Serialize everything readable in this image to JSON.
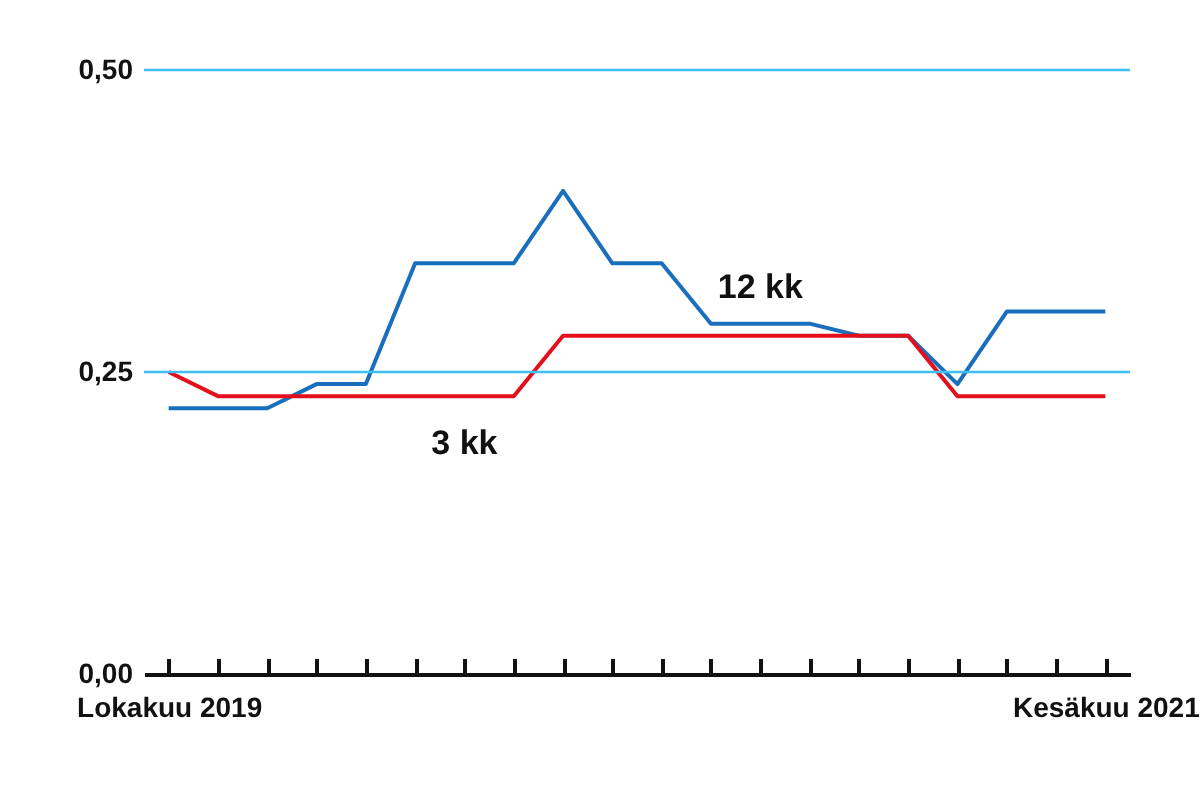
{
  "chart_data": {
    "type": "line",
    "categories": [
      "Lokakuu 2019",
      null,
      null,
      null,
      null,
      null,
      null,
      null,
      null,
      null,
      null,
      null,
      null,
      null,
      null,
      null,
      null,
      null,
      null,
      "Kesäkuu 2021"
    ],
    "series": [
      {
        "name": "12 kk",
        "color": "#1a6fbd",
        "values": [
          0.22,
          0.22,
          0.22,
          0.24,
          0.24,
          0.34,
          0.34,
          0.34,
          0.4,
          0.34,
          0.34,
          0.29,
          0.29,
          0.29,
          0.28,
          0.28,
          0.24,
          0.3,
          0.3,
          0.3
        ]
      },
      {
        "name": "3 kk",
        "color": "#e3101c",
        "values": [
          0.25,
          0.23,
          0.23,
          0.23,
          0.23,
          0.23,
          0.23,
          0.23,
          0.28,
          0.28,
          0.28,
          0.28,
          0.28,
          0.28,
          0.28,
          0.28,
          0.23,
          0.23,
          0.23,
          0.23
        ]
      }
    ],
    "ylim": [
      0,
      0.5
    ],
    "yticks": [
      {
        "value": 0,
        "label": "0,00"
      },
      {
        "value": 0.25,
        "label": "0,25"
      },
      {
        "value": 0.5,
        "label": "0,50"
      }
    ],
    "ref_lines": [
      {
        "axis": "y",
        "value": 0.25,
        "color": "#3fbff0"
      },
      {
        "axis": "y",
        "value": 0.5,
        "color": "#3fbff0"
      }
    ],
    "legend": false,
    "marker": "none",
    "line_style": "solid"
  }
}
